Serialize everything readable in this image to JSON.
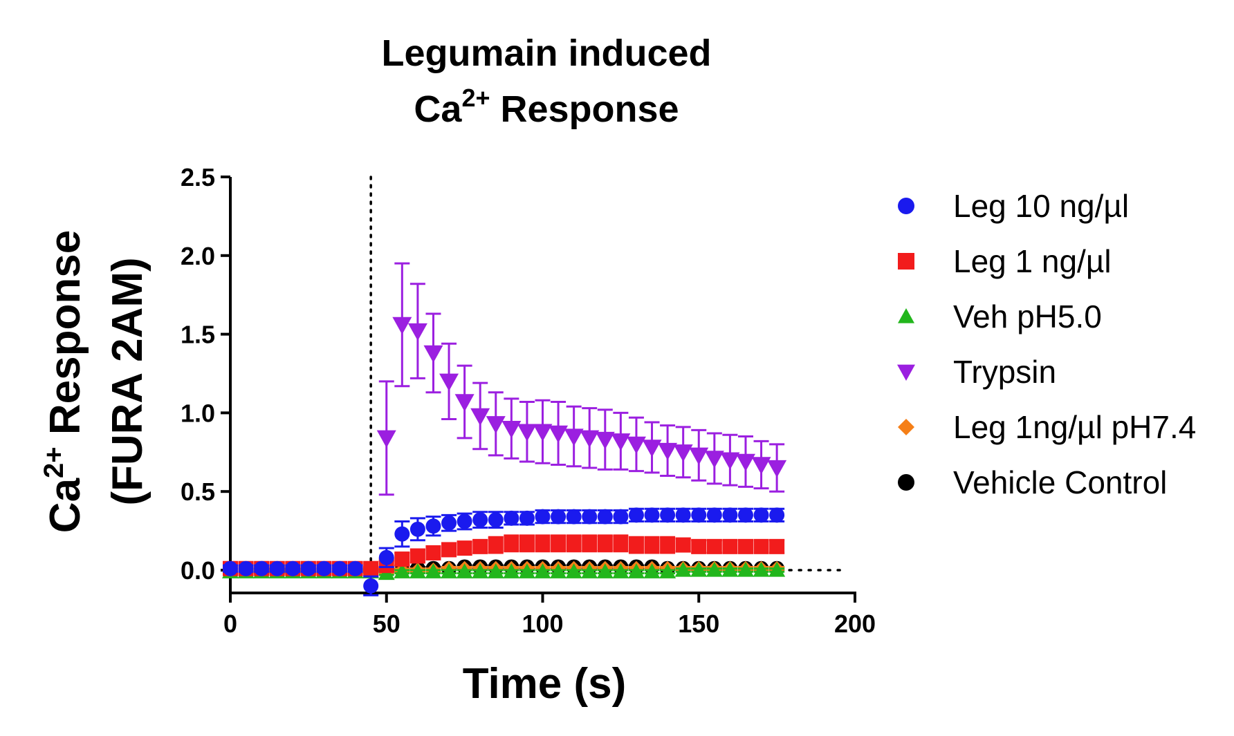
{
  "chart_data": {
    "type": "scatter",
    "title_line1": "Legumain induced",
    "title_line2_prefix": "Ca",
    "title_line2_sup": "2+",
    "title_line2_suffix": " Response",
    "xlabel": "Time (s)",
    "ylabel_line1_prefix": "Ca",
    "ylabel_line1_sup": "2+",
    "ylabel_line1_suffix": " Response",
    "ylabel_line2": "(FURA 2AM)",
    "xlim": [
      0,
      200
    ],
    "ylim": [
      -0.15,
      2.5
    ],
    "x_ticks": [
      0,
      50,
      100,
      150,
      200
    ],
    "x_tick_labels": [
      "0",
      "50",
      "100",
      "150",
      "200"
    ],
    "y_ticks": [
      0.0,
      0.5,
      1.0,
      1.5,
      2.0,
      2.5
    ],
    "y_tick_labels": [
      "0.0",
      "0.5",
      "1.0",
      "1.5",
      "2.0",
      "2.5"
    ],
    "baseline": 0,
    "stimulus_time": 45,
    "legend_position": "right",
    "x": [
      0,
      5,
      10,
      15,
      20,
      25,
      30,
      35,
      40,
      45,
      50,
      55,
      60,
      65,
      70,
      75,
      80,
      85,
      90,
      95,
      100,
      105,
      110,
      115,
      120,
      125,
      130,
      135,
      140,
      145,
      150,
      155,
      160,
      165,
      170,
      175
    ],
    "series": [
      {
        "name": "Vehicle Control",
        "marker": "circle",
        "color": "#000000",
        "values": [
          0,
          0,
          0,
          0,
          0,
          0,
          0,
          0,
          0,
          0,
          0,
          0,
          0.01,
          0.01,
          0.01,
          0.02,
          0.02,
          0.02,
          0.02,
          0.02,
          0.02,
          0.02,
          0.02,
          0.02,
          0.02,
          0.02,
          0.02,
          0.02,
          0.01,
          0.01,
          0.01,
          0.01,
          0.01,
          0.01,
          0.01,
          0.01
        ],
        "errors": [
          0.01,
          0.01,
          0.01,
          0.01,
          0.01,
          0.01,
          0.01,
          0.01,
          0.01,
          0.01,
          0.01,
          0.01,
          0.01,
          0.01,
          0.01,
          0.01,
          0.01,
          0.01,
          0.01,
          0.01,
          0.01,
          0.01,
          0.01,
          0.01,
          0.01,
          0.01,
          0.01,
          0.01,
          0.01,
          0.01,
          0.01,
          0.01,
          0.01,
          0.01,
          0.01,
          0.01
        ]
      },
      {
        "name": "Leg 1ng/µl pH7.4",
        "marker": "diamond",
        "color": "#f57f17",
        "values": [
          0,
          0,
          0,
          0,
          0,
          0,
          0,
          0,
          0,
          0,
          -0.01,
          0,
          0,
          0,
          0.01,
          0.01,
          0.01,
          0.01,
          0.01,
          0.01,
          0.01,
          0.01,
          0.01,
          0.01,
          0.01,
          0.01,
          0.01,
          0.01,
          0.01,
          0.01,
          0.01,
          0.01,
          0.01,
          0.01,
          0.01,
          0.01
        ],
        "errors": [
          0.01,
          0.01,
          0.01,
          0.01,
          0.01,
          0.01,
          0.01,
          0.01,
          0.01,
          0.01,
          0.01,
          0.01,
          0.01,
          0.01,
          0.01,
          0.01,
          0.01,
          0.01,
          0.01,
          0.01,
          0.01,
          0.01,
          0.01,
          0.01,
          0.01,
          0.01,
          0.01,
          0.01,
          0.01,
          0.01,
          0.01,
          0.01,
          0.01,
          0.01,
          0.01,
          0.01
        ]
      },
      {
        "name": "Veh pH5.0",
        "marker": "triangle-up",
        "color": "#22b61c",
        "values": [
          -0.01,
          -0.01,
          -0.01,
          -0.01,
          -0.01,
          -0.01,
          -0.01,
          -0.01,
          -0.01,
          -0.01,
          -0.02,
          -0.01,
          -0.01,
          -0.01,
          -0.01,
          -0.01,
          -0.01,
          -0.01,
          -0.01,
          -0.01,
          -0.01,
          -0.01,
          -0.01,
          -0.01,
          -0.01,
          -0.01,
          -0.01,
          -0.01,
          -0.01,
          0,
          0,
          0,
          0,
          0,
          0,
          0
        ],
        "errors": [
          0.01,
          0.01,
          0.01,
          0.01,
          0.01,
          0.01,
          0.01,
          0.01,
          0.01,
          0.01,
          0.01,
          0.01,
          0.01,
          0.01,
          0.01,
          0.01,
          0.01,
          0.01,
          0.01,
          0.01,
          0.01,
          0.01,
          0.01,
          0.01,
          0.01,
          0.01,
          0.01,
          0.01,
          0.01,
          0.01,
          0.01,
          0.01,
          0.01,
          0.01,
          0.01,
          0.01
        ]
      },
      {
        "name": "Leg 1 ng/µl",
        "marker": "square",
        "color": "#f21c1c",
        "values": [
          0.01,
          0.01,
          0.01,
          0.01,
          0.01,
          0.01,
          0.01,
          0.01,
          0.01,
          0.01,
          0.03,
          0.07,
          0.09,
          0.11,
          0.13,
          0.14,
          0.15,
          0.16,
          0.17,
          0.17,
          0.17,
          0.17,
          0.17,
          0.17,
          0.17,
          0.17,
          0.16,
          0.16,
          0.16,
          0.16,
          0.15,
          0.15,
          0.15,
          0.15,
          0.15,
          0.15
        ],
        "errors": [
          0.01,
          0.01,
          0.01,
          0.01,
          0.01,
          0.01,
          0.01,
          0.01,
          0.01,
          0.01,
          0.03,
          0.04,
          0.04,
          0.04,
          0.04,
          0.04,
          0.04,
          0.05,
          0.05,
          0.05,
          0.05,
          0.05,
          0.05,
          0.05,
          0.05,
          0.05,
          0.05,
          0.05,
          0.05,
          0.04,
          0.04,
          0.04,
          0.04,
          0.04,
          0.04,
          0.04
        ]
      },
      {
        "name": "Leg 10 ng/µl",
        "marker": "circle",
        "color": "#1a1aee",
        "values": [
          0.01,
          0.01,
          0.01,
          0.01,
          0.01,
          0.01,
          0.01,
          0.01,
          0.01,
          -0.1,
          0.08,
          0.23,
          0.26,
          0.28,
          0.3,
          0.31,
          0.32,
          0.32,
          0.33,
          0.33,
          0.34,
          0.34,
          0.34,
          0.34,
          0.34,
          0.34,
          0.35,
          0.35,
          0.35,
          0.35,
          0.35,
          0.35,
          0.35,
          0.35,
          0.35,
          0.35
        ],
        "errors": [
          0.02,
          0.02,
          0.02,
          0.02,
          0.02,
          0.02,
          0.02,
          0.02,
          0.02,
          0.06,
          0.06,
          0.08,
          0.07,
          0.06,
          0.05,
          0.05,
          0.05,
          0.05,
          0.04,
          0.04,
          0.04,
          0.04,
          0.04,
          0.04,
          0.04,
          0.04,
          0.04,
          0.04,
          0.04,
          0.04,
          0.04,
          0.04,
          0.04,
          0.04,
          0.04,
          0.04
        ]
      },
      {
        "name": "Trypsin",
        "marker": "triangle-down",
        "color": "#9b1fe0",
        "values": [
          null,
          null,
          null,
          null,
          null,
          null,
          null,
          null,
          null,
          null,
          0.84,
          1.56,
          1.52,
          1.38,
          1.2,
          1.07,
          0.98,
          0.93,
          0.9,
          0.88,
          0.88,
          0.87,
          0.85,
          0.84,
          0.83,
          0.82,
          0.8,
          0.78,
          0.76,
          0.75,
          0.73,
          0.71,
          0.7,
          0.69,
          0.67,
          0.65
        ],
        "errors": [
          null,
          null,
          null,
          null,
          null,
          null,
          null,
          null,
          null,
          null,
          0.36,
          0.39,
          0.3,
          0.25,
          0.24,
          0.23,
          0.21,
          0.2,
          0.19,
          0.19,
          0.2,
          0.2,
          0.19,
          0.19,
          0.19,
          0.18,
          0.17,
          0.16,
          0.16,
          0.16,
          0.16,
          0.16,
          0.16,
          0.16,
          0.15,
          0.15
        ]
      }
    ],
    "legend": [
      {
        "name": "Leg 10 ng/µl",
        "marker": "circle",
        "color": "#1a1aee"
      },
      {
        "name": "Leg 1 ng/µl",
        "marker": "square",
        "color": "#f21c1c"
      },
      {
        "name": "Veh pH5.0",
        "marker": "triangle-up",
        "color": "#22b61c"
      },
      {
        "name": "Trypsin",
        "marker": "triangle-down",
        "color": "#9b1fe0"
      },
      {
        "name": "Leg 1ng/µl pH7.4",
        "marker": "diamond",
        "color": "#f57f17"
      },
      {
        "name": "Vehicle Control",
        "marker": "circle",
        "color": "#000000"
      }
    ]
  }
}
